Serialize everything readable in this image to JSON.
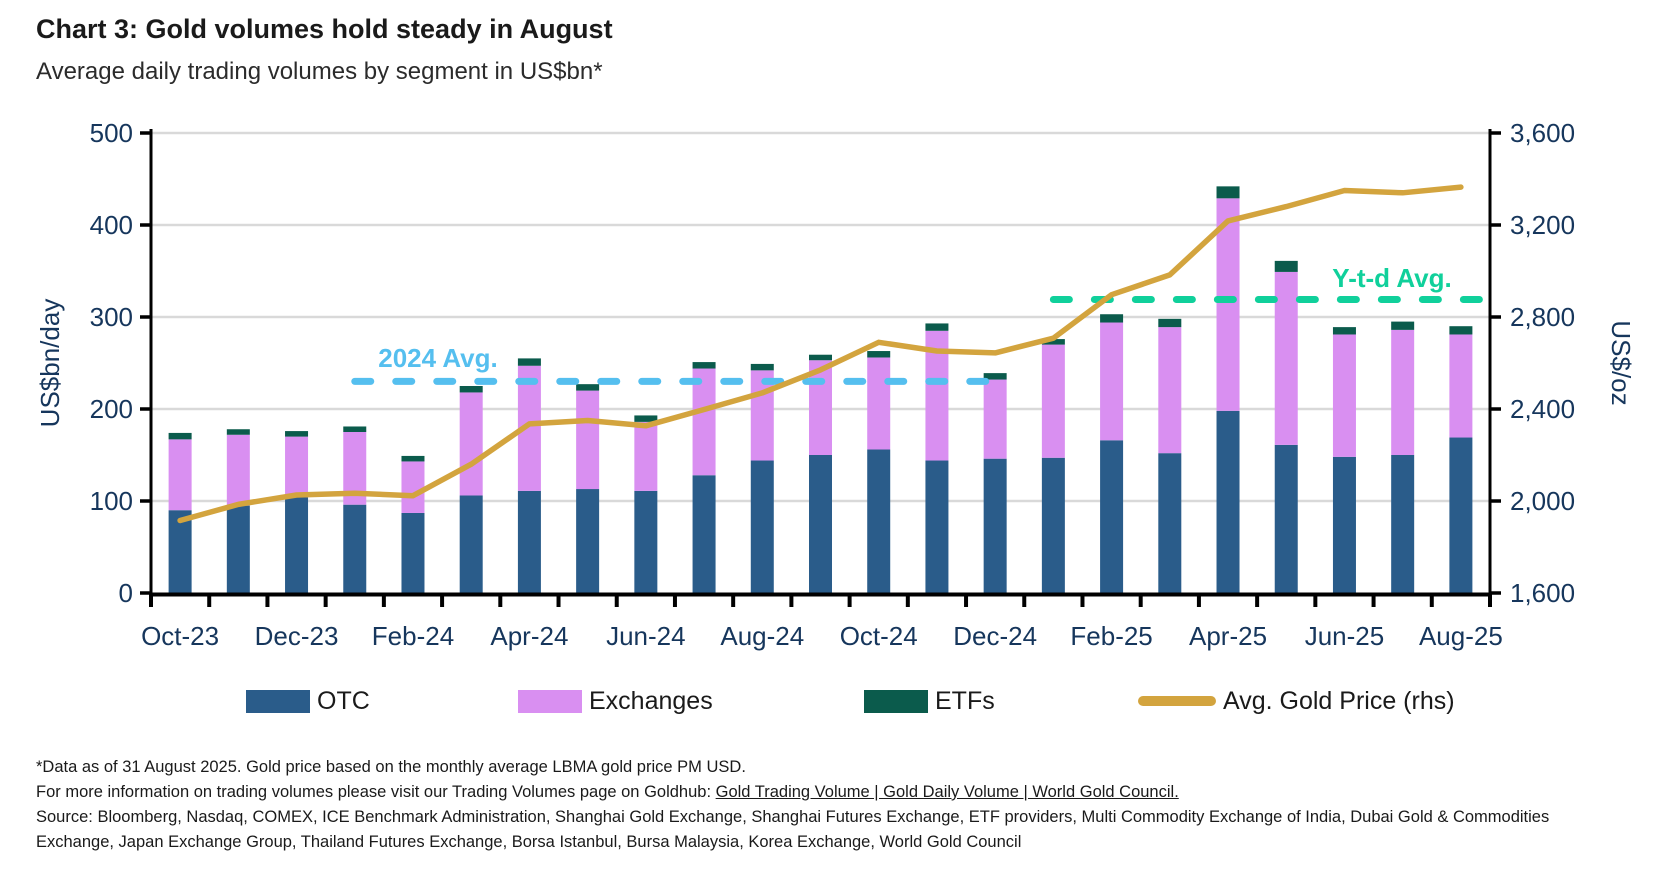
{
  "header": {
    "title": "Chart 3: Gold volumes hold steady in August",
    "subtitle": "Average daily trading volumes by segment in US$bn*"
  },
  "chart_data": {
    "type": "bar",
    "stacked": true,
    "title": "Average daily trading volumes by segment in US$bn",
    "categories": [
      "Oct-23",
      "Nov-23",
      "Dec-23",
      "Jan-24",
      "Feb-24",
      "Mar-24",
      "Apr-24",
      "May-24",
      "Jun-24",
      "Jul-24",
      "Aug-24",
      "Sep-24",
      "Oct-24",
      "Nov-24",
      "Dec-24",
      "Jan-25",
      "Feb-25",
      "Mar-25",
      "Apr-25",
      "May-25",
      "Jun-25",
      "Jul-25",
      "Aug-25"
    ],
    "x_tick_labels": [
      "Oct-23",
      "Dec-23",
      "Feb-24",
      "Apr-24",
      "Jun-24",
      "Aug-24",
      "Oct-24",
      "Dec-24",
      "Feb-25",
      "Apr-25",
      "Jun-25",
      "Aug-25"
    ],
    "series": [
      {
        "name": "OTC",
        "type": "bar",
        "axis": "left",
        "color": "#2a5c8a",
        "values": [
          90,
          95,
          104,
          96,
          87,
          106,
          111,
          113,
          111,
          128,
          144,
          150,
          156,
          144,
          146,
          147,
          166,
          152,
          198,
          161,
          148,
          150,
          169
        ]
      },
      {
        "name": "Exchanges",
        "type": "bar",
        "axis": "left",
        "color": "#d98ff1",
        "values": [
          77,
          77,
          66,
          79,
          56,
          112,
          136,
          107,
          75,
          116,
          98,
          103,
          100,
          141,
          86,
          123,
          128,
          137,
          231,
          188,
          133,
          136,
          112
        ]
      },
      {
        "name": "ETFs",
        "type": "bar",
        "axis": "left",
        "color": "#0b5b4c",
        "values": [
          7,
          6,
          6,
          6,
          6,
          7,
          8,
          7,
          7,
          7,
          7,
          6,
          7,
          8,
          7,
          6,
          9,
          9,
          13,
          12,
          8,
          9,
          9
        ]
      },
      {
        "name": "Avg. Gold Price (rhs)",
        "type": "line",
        "axis": "right",
        "color": "#d3a43e",
        "values": [
          1915,
          1985,
          2026,
          2034,
          2023,
          2160,
          2335,
          2350,
          2327,
          2398,
          2470,
          2570,
          2690,
          2652,
          2644,
          2708,
          2897,
          2983,
          3218,
          3280,
          3350,
          3340,
          3365
        ]
      }
    ],
    "left_axis": {
      "label": "US$bn/day",
      "min": 0,
      "max": 500,
      "step": 100,
      "tick_labels": [
        "0",
        "100",
        "200",
        "300",
        "400",
        "500"
      ]
    },
    "right_axis": {
      "label": "US$/oz",
      "min": 1600,
      "max": 3600,
      "step": 400,
      "tick_labels": [
        "1,600",
        "2,000",
        "2,400",
        "2,800",
        "3,200",
        "3,600"
      ]
    },
    "annotations": [
      {
        "id": "avg2024",
        "label": "2024 Avg.",
        "value": 230,
        "color": "#55bfef",
        "from_month": "Jan-24",
        "to_month": "Dec-24",
        "extend_to_axis": false
      },
      {
        "id": "avgytd",
        "label": "Y-t-d Avg.",
        "value": 319,
        "color": "#10d09b",
        "from_month": "Jan-25",
        "to_month": "Aug-25",
        "extend_to_axis": true
      }
    ],
    "grid": "horizontal",
    "gridline_color": "#d9d9d9",
    "axis_label_color": "#16365c",
    "legend_position": "bottom"
  },
  "legend": {
    "items": [
      {
        "label": "OTC",
        "color": "#2a5c8a",
        "shape": "rect"
      },
      {
        "label": "Exchanges",
        "color": "#d98ff1",
        "shape": "rect"
      },
      {
        "label": "ETFs",
        "color": "#0b5b4c",
        "shape": "rect"
      },
      {
        "label": "Avg. Gold Price (rhs)",
        "color": "#d3a43e",
        "shape": "line"
      }
    ]
  },
  "footnotes": {
    "line1": "*Data as of 31 August 2025.  Gold price based on the monthly average LBMA gold price PM USD.",
    "line2_prefix": "For more information on trading volumes please visit our Trading Volumes page on Goldhub: ",
    "line2_link": "Gold Trading Volume | Gold Daily Volume | World Gold Council.",
    "source": "Source: Bloomberg, Nasdaq, COMEX, ICE Benchmark Administration, Shanghai Gold Exchange, Shanghai Futures Exchange, ETF providers, Multi Commodity Exchange of India, Dubai Gold & Commodities Exchange, Japan Exchange Group, Thailand Futures Exchange, Borsa Istanbul, Bursa Malaysia, Korea Exchange, World Gold Council"
  }
}
